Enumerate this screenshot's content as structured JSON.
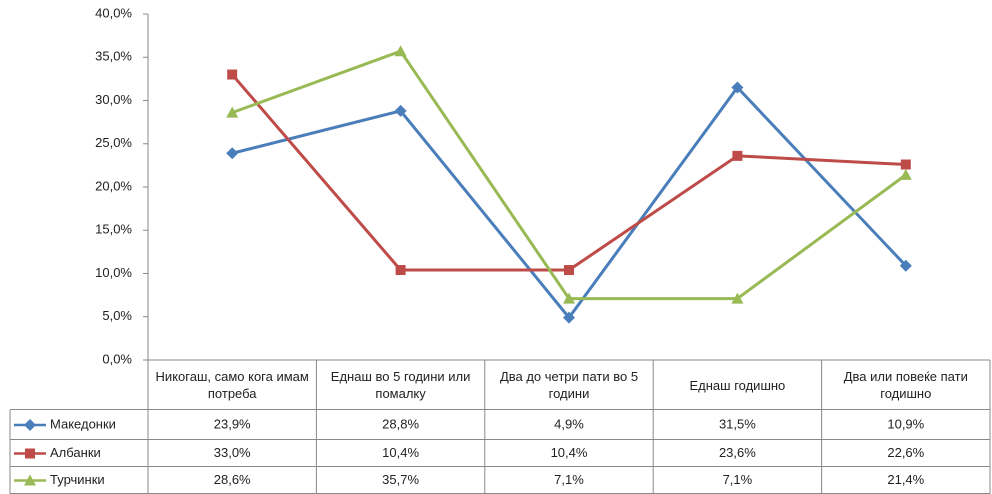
{
  "chart_data": {
    "type": "line",
    "categories": [
      "Никогаш, само кога имам потреба",
      "Еднаш во 5 години или помалку",
      "Два до четри пати во 5 години",
      "Еднаш годишно",
      "Два или повеќе пати годишно"
    ],
    "series": [
      {
        "name": "Македонки",
        "color": "#4a7ebb",
        "marker": "diamond",
        "values": [
          23.9,
          28.8,
          4.9,
          31.5,
          10.9
        ],
        "value_labels": [
          "23,9%",
          "28,8%",
          "4,9%",
          "31,5%",
          "10,9%"
        ]
      },
      {
        "name": "Албанки",
        "color": "#be4b48",
        "marker": "square",
        "values": [
          33.0,
          10.4,
          10.4,
          23.6,
          22.6
        ],
        "value_labels": [
          "33,0%",
          "10,4%",
          "10,4%",
          "23,6%",
          "22,6%"
        ]
      },
      {
        "name": "Турчинки",
        "color": "#98b954",
        "marker": "triangle",
        "values": [
          28.6,
          35.7,
          7.1,
          7.1,
          21.4
        ],
        "value_labels": [
          "28,6%",
          "35,7%",
          "7,1%",
          "7,1%",
          "21,4%"
        ]
      }
    ],
    "ylim": [
      0,
      40
    ],
    "yticks": [
      {
        "value": 0,
        "label": "0,0%"
      },
      {
        "value": 5,
        "label": "5,0%"
      },
      {
        "value": 10,
        "label": "10,0%"
      },
      {
        "value": 15,
        "label": "15,0%"
      },
      {
        "value": 20,
        "label": "20,0%"
      },
      {
        "value": 25,
        "label": "25,0%"
      },
      {
        "value": 30,
        "label": "30,0%"
      },
      {
        "value": 35,
        "label": "35,0%"
      },
      {
        "value": 40,
        "label": "40,0%"
      }
    ],
    "grid": false,
    "data_table": true
  }
}
